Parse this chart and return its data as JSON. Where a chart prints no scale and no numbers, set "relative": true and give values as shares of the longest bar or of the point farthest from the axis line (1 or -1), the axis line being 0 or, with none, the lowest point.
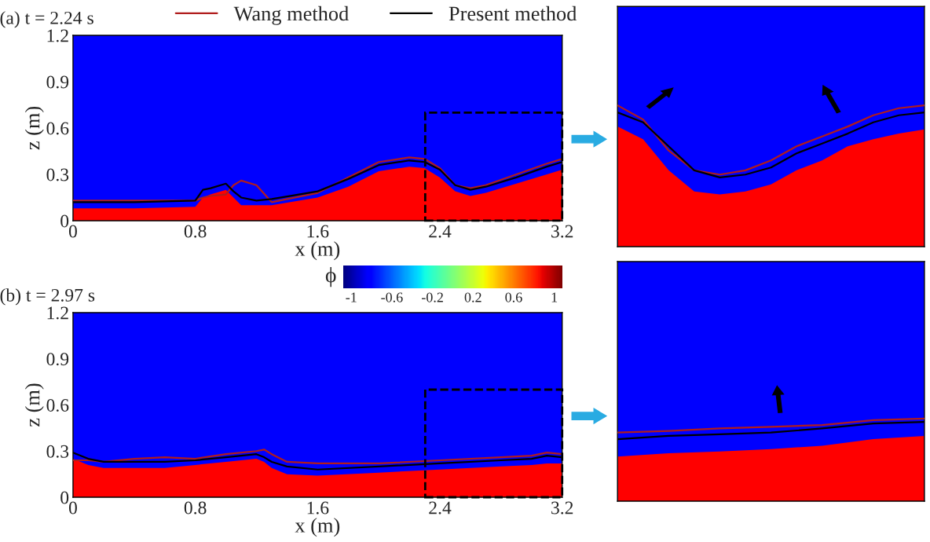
{
  "chart_data": [
    {
      "type": "line",
      "title": "(a) t = 2.24 s",
      "xlabel": "x (m)",
      "ylabel": "z (m)",
      "xlim": [
        0,
        3.2
      ],
      "ylim": [
        0,
        1.2
      ],
      "xticks": [
        0,
        0.8,
        1.6,
        2.4,
        3.2
      ],
      "yticks": [
        0,
        0.3,
        0.6,
        0.9,
        1.2
      ],
      "legend": "top",
      "grid": false,
      "x": [
        0,
        0.4,
        0.8,
        0.85,
        0.9,
        1.0,
        1.05,
        1.1,
        1.2,
        1.3,
        1.6,
        1.8,
        2.0,
        2.2,
        2.3,
        2.4,
        2.5,
        2.6,
        2.7,
        2.9,
        3.1,
        3.2
      ],
      "bands": [
        {
          "axis": "y",
          "from": 0,
          "to": 1.2,
          "color": "#0000ff"
        }
      ],
      "series": [
        {
          "type": "area",
          "color": "#ff0000",
          "values": [
            0.08,
            0.08,
            0.09,
            0.15,
            0.17,
            0.2,
            0.15,
            0.1,
            0.1,
            0.1,
            0.15,
            0.22,
            0.32,
            0.35,
            0.34,
            0.28,
            0.19,
            0.16,
            0.18,
            0.24,
            0.3,
            0.33
          ]
        },
        {
          "name": "Wang method",
          "color": "#b01c1c",
          "values": [
            0.13,
            0.13,
            0.13,
            0.15,
            0.16,
            0.17,
            0.23,
            0.26,
            0.23,
            0.12,
            0.18,
            0.28,
            0.38,
            0.41,
            0.4,
            0.34,
            0.23,
            0.21,
            0.23,
            0.3,
            0.37,
            0.4
          ]
        },
        {
          "name": "Present method",
          "color": "#000000",
          "values": [
            0.12,
            0.12,
            0.13,
            0.2,
            0.21,
            0.24,
            0.19,
            0.15,
            0.13,
            0.14,
            0.19,
            0.27,
            0.36,
            0.39,
            0.38,
            0.33,
            0.23,
            0.2,
            0.22,
            0.28,
            0.35,
            0.38
          ]
        }
      ]
    },
    {
      "type": "line",
      "relative": true,
      "categories": [
        null,
        null,
        null,
        null,
        null,
        null,
        null,
        null,
        null,
        null,
        null,
        null,
        null
      ],
      "series": [
        {
          "type": "area",
          "color": "#ff0000",
          "values": [
            0.85,
            0.76,
            0.54,
            0.39,
            0.37,
            0.39,
            0.44,
            0.54,
            0.61,
            0.71,
            0.76,
            0.8,
            0.83
          ]
        },
        {
          "color": "#b01c1c",
          "values": [
            1,
            0.9,
            0.68,
            0.54,
            0.51,
            0.54,
            0.61,
            0.71,
            0.78,
            0.85,
            0.93,
            0.98,
            1
          ]
        },
        {
          "color": "#000000",
          "values": [
            0.95,
            0.88,
            0.71,
            0.54,
            0.49,
            0.51,
            0.56,
            0.66,
            0.73,
            0.8,
            0.88,
            0.93,
            0.95
          ]
        }
      ]
    },
    {
      "type": "line",
      "title": "(b) t = 2.97 s",
      "xlabel": "x (m)",
      "ylabel": "z (m)",
      "xlim": [
        0,
        3.2
      ],
      "ylim": [
        0,
        1.2
      ],
      "xticks": [
        0,
        0.8,
        1.6,
        2.4,
        3.2
      ],
      "yticks": [
        0,
        0.3,
        0.6,
        0.9,
        1.2
      ],
      "grid": false,
      "clabel": "ϕ",
      "clim": [
        -1.08,
        1.08
      ],
      "cticks": [
        {
          "value": -1,
          "label": "-1"
        },
        {
          "value": -0.6,
          "label": "-0.6"
        },
        {
          "value": -0.2,
          "label": "-0.2"
        },
        0.2,
        0.6,
        1
      ],
      "x": [
        0,
        0.1,
        0.2,
        0.4,
        0.6,
        0.8,
        1.0,
        1.2,
        1.25,
        1.3,
        1.4,
        1.6,
        2.0,
        2.4,
        2.8,
        3.0,
        3.1,
        3.2
      ],
      "bands": [
        {
          "axis": "y",
          "from": 0,
          "to": 1.2,
          "color": "#0000ff"
        }
      ],
      "series": [
        {
          "type": "area",
          "color": "#ff0000",
          "values": [
            0.25,
            0.21,
            0.19,
            0.19,
            0.19,
            0.21,
            0.23,
            0.25,
            0.23,
            0.19,
            0.15,
            0.14,
            0.16,
            0.18,
            0.2,
            0.21,
            0.22,
            0.22
          ]
        },
        {
          "color": "#b01c1c",
          "values": [
            0.24,
            0.24,
            0.23,
            0.25,
            0.26,
            0.25,
            0.28,
            0.3,
            0.31,
            0.28,
            0.23,
            0.22,
            0.22,
            0.24,
            0.26,
            0.27,
            0.29,
            0.28
          ]
        },
        {
          "color": "#000000",
          "values": [
            0.29,
            0.25,
            0.23,
            0.23,
            0.23,
            0.24,
            0.26,
            0.28,
            0.26,
            0.23,
            0.2,
            0.18,
            0.2,
            0.22,
            0.24,
            0.25,
            0.27,
            0.26
          ]
        }
      ]
    },
    {
      "type": "line",
      "relative": true,
      "categories": [
        null,
        null,
        null,
        null,
        null,
        null,
        null
      ],
      "series": [
        {
          "type": "area",
          "color": "#ff0000",
          "values": [
            0.54,
            0.58,
            0.6,
            0.63,
            0.67,
            0.75,
            0.79
          ]
        },
        {
          "color": "#b01c1c",
          "values": [
            0.83,
            0.85,
            0.88,
            0.9,
            0.92,
            0.98,
            1
          ]
        },
        {
          "color": "#000000",
          "values": [
            0.75,
            0.79,
            0.81,
            0.83,
            0.88,
            0.94,
            0.96
          ]
        }
      ]
    }
  ]
}
